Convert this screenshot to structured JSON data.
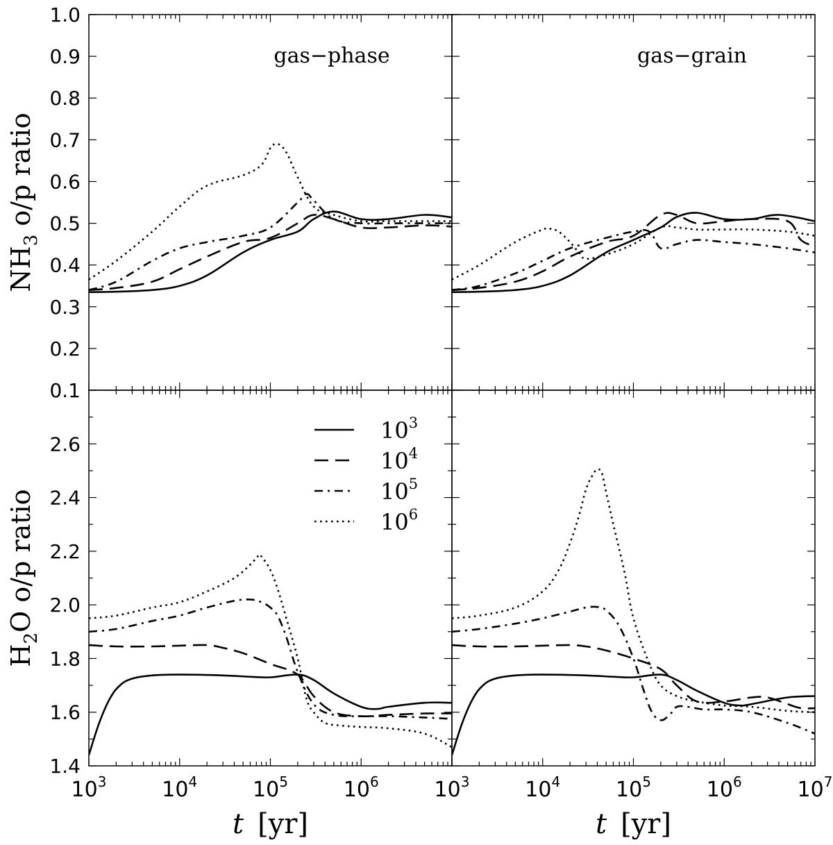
{
  "styles": {
    "solid": "",
    "dashed": "20,10",
    "dashdot": "12,7,3,7",
    "dotted": "2.6,5.4"
  },
  "chart_data": {
    "type": "line",
    "x_scale": "log",
    "xlim": [
      1000,
      10000000
    ],
    "x_tick_values": [
      1000,
      10000,
      100000,
      1000000,
      10000000
    ],
    "x_tick_labels": [
      {
        "base": "10",
        "exp": "3"
      },
      {
        "base": "10",
        "exp": "4"
      },
      {
        "base": "10",
        "exp": "5"
      },
      {
        "base": "10",
        "exp": "6"
      },
      {
        "base": "10",
        "exp": "3"
      },
      {
        "base": "10",
        "exp": "4"
      },
      {
        "base": "10",
        "exp": "5"
      },
      {
        "base": "10",
        "exp": "6"
      },
      {
        "base": "10",
        "exp": "7"
      }
    ],
    "xlabel": {
      "var": "t",
      "unit": "[yr]"
    },
    "legend": {
      "placement": "lower-left panel, upper-center",
      "entries": [
        {
          "base": "10",
          "exp": "3",
          "style": "solid"
        },
        {
          "base": "10",
          "exp": "4",
          "style": "dashed"
        },
        {
          "base": "10",
          "exp": "5",
          "style": "dashdot"
        },
        {
          "base": "10",
          "exp": "6",
          "style": "dotted"
        }
      ]
    },
    "rows": [
      {
        "ylabel": {
          "pre": "NH",
          "sub": "3",
          "post": " o/p ratio"
        },
        "ylim": [
          0.1,
          1.0
        ],
        "y_ticks": [
          "0.1",
          "0.2",
          "0.3",
          "0.4",
          "0.5",
          "0.6",
          "0.7",
          "0.8",
          "0.9",
          "1.0"
        ]
      },
      {
        "ylabel": {
          "pre": "H",
          "sub": "2",
          "post": "O o/p ratio"
        },
        "ylim": [
          1.4,
          2.8
        ],
        "y_ticks": [
          "1.4",
          "1.6",
          "1.8",
          "2.0",
          "2.2",
          "2.4",
          "2.6"
        ]
      }
    ],
    "panels": [
      {
        "row": 0,
        "col": 0,
        "label": "gas−phase",
        "series": [
          {
            "style": "solid",
            "x": [
              1000,
              2000,
              5000,
              10000,
              20000,
              50000,
              100000,
              200000,
              300000,
              500000,
              1000000,
              2000000,
              5000000,
              10000000
            ],
            "y": [
              0.335,
              0.336,
              0.34,
              0.35,
              0.375,
              0.43,
              0.46,
              0.48,
              0.51,
              0.528,
              0.51,
              0.51,
              0.52,
              0.514
            ]
          },
          {
            "style": "dashed",
            "x": [
              1000,
              2000,
              5000,
              10000,
              20000,
              50000,
              100000,
              200000,
              300000,
              500000,
              1000000,
              2000000,
              5000000,
              10000000
            ],
            "y": [
              0.34,
              0.345,
              0.36,
              0.39,
              0.42,
              0.455,
              0.465,
              0.5,
              0.52,
              0.51,
              0.49,
              0.49,
              0.495,
              0.492
            ]
          },
          {
            "style": "dashdot",
            "x": [
              1000,
              2000,
              5000,
              10000,
              20000,
              50000,
              100000,
              200000,
              250000,
              300000,
              500000,
              1000000,
              2000000,
              5000000,
              10000000
            ],
            "y": [
              0.34,
              0.36,
              0.41,
              0.44,
              0.455,
              0.47,
              0.49,
              0.55,
              0.57,
              0.555,
              0.51,
              0.5,
              0.5,
              0.5,
              0.5
            ]
          },
          {
            "style": "dotted",
            "x": [
              1000,
              2000,
              5000,
              10000,
              20000,
              50000,
              80000,
              100000,
              120000,
              150000,
              200000,
              300000,
              500000,
              1000000,
              2000000,
              10000000
            ],
            "y": [
              0.365,
              0.41,
              0.48,
              0.54,
              0.59,
              0.615,
              0.64,
              0.68,
              0.69,
              0.67,
              0.61,
              0.54,
              0.52,
              0.505,
              0.505,
              0.505
            ]
          }
        ]
      },
      {
        "row": 0,
        "col": 1,
        "label": "gas−grain",
        "series": [
          {
            "style": "solid",
            "x": [
              1000,
              2000,
              5000,
              10000,
              20000,
              50000,
              100000,
              200000,
              300000,
              500000,
              1000000,
              2000000,
              4000000,
              10000000
            ],
            "y": [
              0.335,
              0.336,
              0.34,
              0.35,
              0.375,
              0.43,
              0.46,
              0.49,
              0.515,
              0.525,
              0.51,
              0.51,
              0.52,
              0.505
            ]
          },
          {
            "style": "dashed",
            "x": [
              1000,
              2000,
              5000,
              10000,
              20000,
              50000,
              100000,
              200000,
              300000,
              500000,
              1000000,
              2000000,
              5000000,
              7000000,
              10000000
            ],
            "y": [
              0.34,
              0.345,
              0.36,
              0.385,
              0.42,
              0.455,
              0.47,
              0.52,
              0.52,
              0.5,
              0.505,
              0.51,
              0.505,
              0.46,
              0.445
            ]
          },
          {
            "style": "dashdot",
            "x": [
              1000,
              2000,
              5000,
              10000,
              20000,
              50000,
              100000,
              150000,
              200000,
              300000,
              500000,
              1000000,
              2000000,
              5000000,
              10000000
            ],
            "y": [
              0.34,
              0.35,
              0.38,
              0.41,
              0.44,
              0.465,
              0.48,
              0.48,
              0.44,
              0.45,
              0.46,
              0.455,
              0.45,
              0.44,
              0.43
            ]
          },
          {
            "style": "dotted",
            "x": [
              1000,
              2000,
              5000,
              10000,
              12000,
              15000,
              20000,
              25000,
              30000,
              50000,
              100000,
              200000,
              300000,
              500000,
              1000000,
              2000000,
              5000000,
              10000000
            ],
            "y": [
              0.365,
              0.4,
              0.455,
              0.485,
              0.487,
              0.48,
              0.455,
              0.43,
              0.415,
              0.425,
              0.45,
              0.49,
              0.49,
              0.485,
              0.485,
              0.485,
              0.48,
              0.47
            ]
          }
        ]
      },
      {
        "row": 1,
        "col": 0,
        "label": "",
        "series": [
          {
            "style": "solid",
            "x": [
              1000,
              1300,
              1700,
              2200,
              3000,
              5000,
              10000,
              30000,
              60000,
              100000,
              200000,
              300000,
              500000,
              1000000,
              1500000,
              2000000,
              5000000,
              10000000
            ],
            "y": [
              1.44,
              1.56,
              1.65,
              1.7,
              1.725,
              1.737,
              1.74,
              1.737,
              1.732,
              1.73,
              1.74,
              1.72,
              1.67,
              1.62,
              1.612,
              1.62,
              1.635,
              1.635
            ]
          },
          {
            "style": "dashed",
            "x": [
              1000,
              2000,
              5000,
              10000,
              20000,
              30000,
              50000,
              100000,
              200000,
              300000,
              500000,
              1000000,
              2000000,
              5000000,
              10000000
            ],
            "y": [
              1.85,
              1.845,
              1.845,
              1.848,
              1.85,
              1.84,
              1.82,
              1.78,
              1.74,
              1.66,
              1.6,
              1.585,
              1.59,
              1.595,
              1.595
            ]
          },
          {
            "style": "dashdot",
            "x": [
              1000,
              2000,
              5000,
              10000,
              20000,
              40000,
              60000,
              80000,
              100000,
              120000,
              150000,
              200000,
              300000,
              500000,
              1000000,
              2000000,
              5000000,
              10000000
            ],
            "y": [
              1.9,
              1.91,
              1.94,
              1.96,
              1.99,
              2.015,
              2.02,
              2.01,
              1.99,
              1.96,
              1.88,
              1.75,
              1.63,
              1.59,
              1.585,
              1.585,
              1.58,
              1.575
            ]
          },
          {
            "style": "dotted",
            "x": [
              1000,
              2000,
              5000,
              10000,
              20000,
              40000,
              60000,
              75000,
              80000,
              100000,
              120000,
              150000,
              200000,
              250000,
              300000,
              400000,
              600000,
              1000000,
              2000000,
              5000000,
              10000000
            ],
            "y": [
              1.95,
              1.96,
              1.99,
              2.01,
              2.05,
              2.1,
              2.15,
              2.185,
              2.18,
              2.13,
              2.06,
              1.95,
              1.8,
              1.65,
              1.6,
              1.56,
              1.55,
              1.545,
              1.54,
              1.52,
              1.47
            ]
          }
        ]
      },
      {
        "row": 1,
        "col": 1,
        "label": "",
        "series": [
          {
            "style": "solid",
            "x": [
              1000,
              1300,
              1700,
              2200,
              3000,
              5000,
              10000,
              30000,
              60000,
              100000,
              200000,
              300000,
              500000,
              1000000,
              1500000,
              2000000,
              5000000,
              10000000
            ],
            "y": [
              1.44,
              1.56,
              1.65,
              1.7,
              1.725,
              1.737,
              1.74,
              1.737,
              1.732,
              1.73,
              1.74,
              1.72,
              1.68,
              1.635,
              1.625,
              1.63,
              1.655,
              1.66
            ]
          },
          {
            "style": "dashed",
            "x": [
              1000,
              2000,
              5000,
              10000,
              20000,
              30000,
              50000,
              100000,
              200000,
              300000,
              500000,
              1000000,
              2000000,
              3000000,
              5000000,
              7000000,
              10000000
            ],
            "y": [
              1.85,
              1.845,
              1.845,
              1.848,
              1.85,
              1.845,
              1.83,
              1.8,
              1.76,
              1.7,
              1.64,
              1.64,
              1.655,
              1.655,
              1.63,
              1.615,
              1.615
            ]
          },
          {
            "style": "dashdot",
            "x": [
              1000,
              2000,
              5000,
              10000,
              20000,
              30000,
              40000,
              50000,
              70000,
              100000,
              130000,
              160000,
              200000,
              250000,
              300000,
              400000,
              600000,
              1000000,
              2000000,
              5000000,
              10000000
            ],
            "y": [
              1.9,
              1.91,
              1.93,
              1.95,
              1.975,
              1.99,
              1.992,
              1.98,
              1.92,
              1.8,
              1.68,
              1.6,
              1.57,
              1.59,
              1.62,
              1.62,
              1.61,
              1.61,
              1.6,
              1.56,
              1.52
            ]
          },
          {
            "style": "dotted",
            "x": [
              1000,
              2000,
              5000,
              10000,
              15000,
              20000,
              25000,
              30000,
              35000,
              40000,
              45000,
              50000,
              60000,
              80000,
              100000,
              150000,
              200000,
              300000,
              500000,
              1000000,
              2000000,
              5000000,
              10000000
            ],
            "y": [
              1.95,
              1.96,
              1.99,
              2.05,
              2.13,
              2.23,
              2.33,
              2.43,
              2.48,
              2.505,
              2.49,
              2.42,
              2.3,
              2.12,
              1.95,
              1.78,
              1.7,
              1.66,
              1.64,
              1.625,
              1.62,
              1.605,
              1.6
            ]
          }
        ]
      }
    ]
  }
}
